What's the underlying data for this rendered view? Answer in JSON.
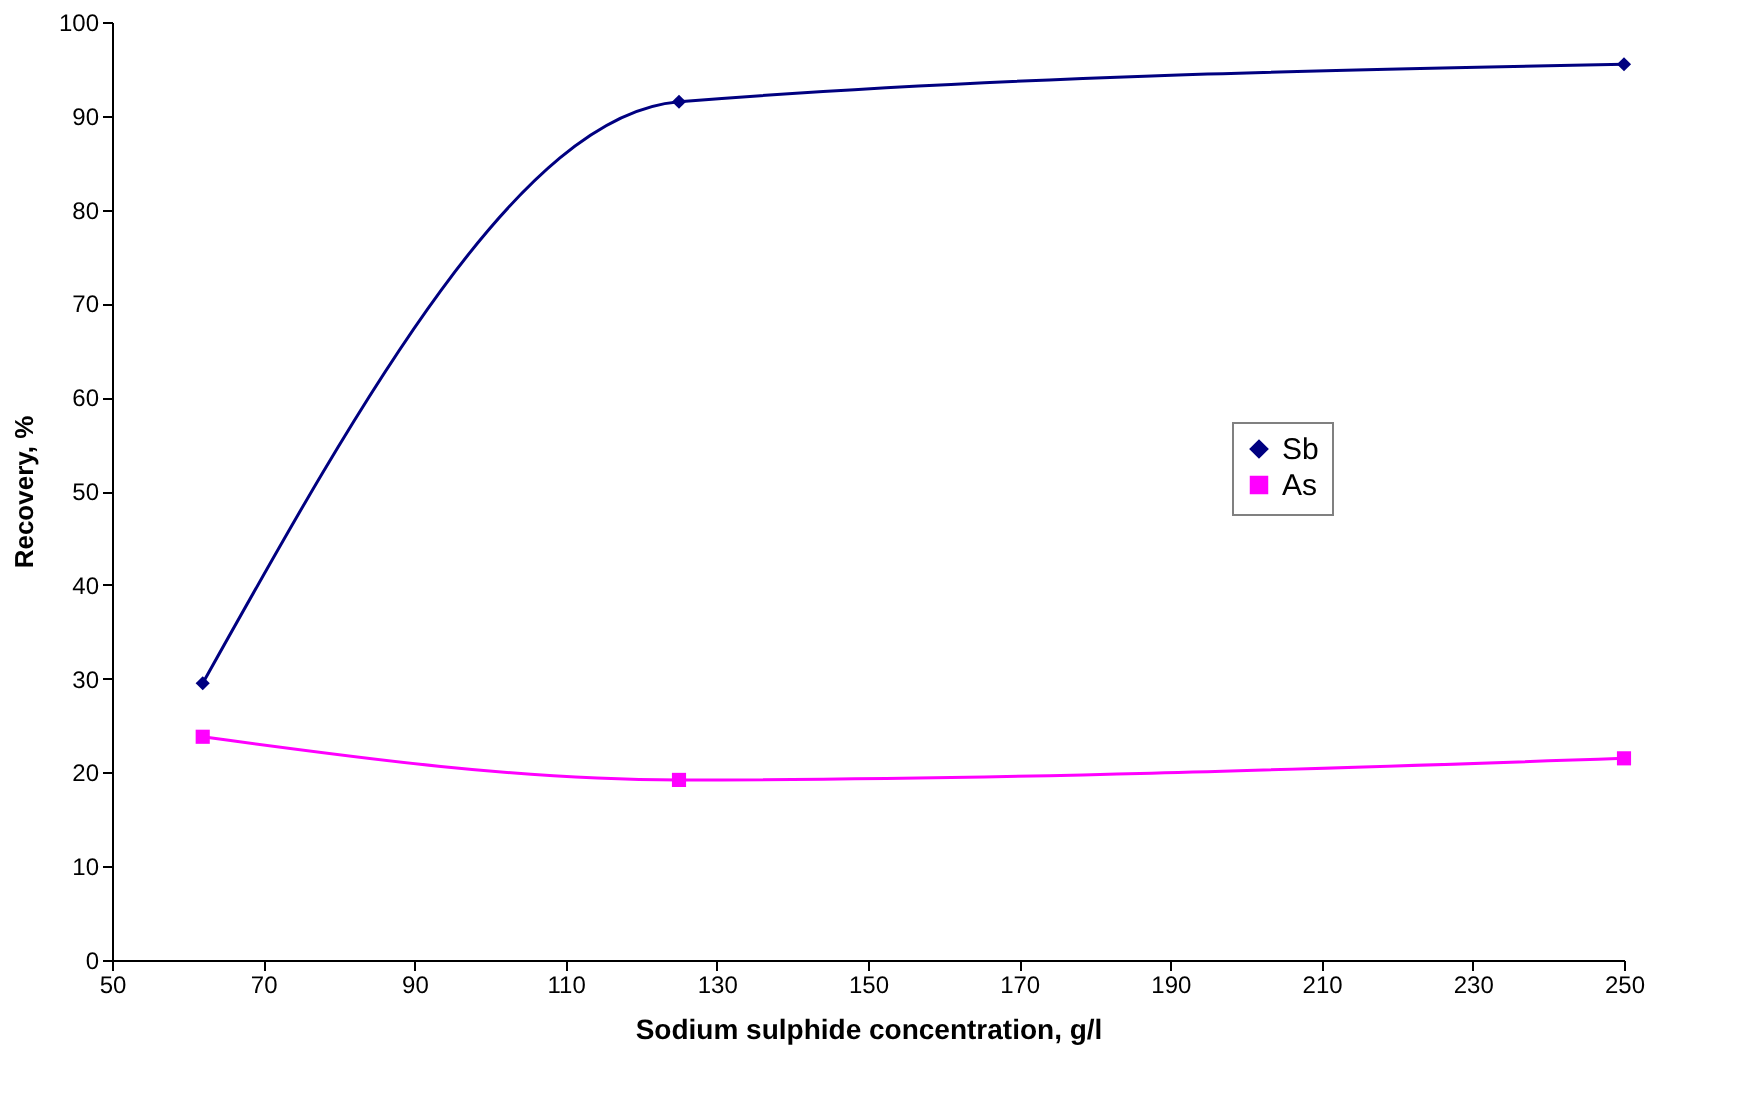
{
  "chart_data": {
    "type": "line",
    "xlabel": "Sodium sulphide concentration, g/l",
    "ylabel": "Recovery, %",
    "x": [
      62,
      125,
      250
    ],
    "series": [
      {
        "name": "Sb",
        "color": "#000080",
        "marker": "diamond",
        "values": [
          29.5,
          91.5,
          95.5
        ]
      },
      {
        "name": "As",
        "color": "#ff00ff",
        "marker": "square",
        "values": [
          23.8,
          19.2,
          21.5
        ]
      }
    ],
    "xlim": [
      50,
      250
    ],
    "xticks": [
      50,
      70,
      90,
      110,
      130,
      150,
      170,
      190,
      210,
      230,
      250
    ],
    "ylim": [
      0,
      100
    ],
    "yticks": [
      0,
      10,
      20,
      30,
      40,
      50,
      60,
      70,
      80,
      90,
      100
    ],
    "grid": false,
    "legend": "right",
    "line_style": "solid"
  }
}
